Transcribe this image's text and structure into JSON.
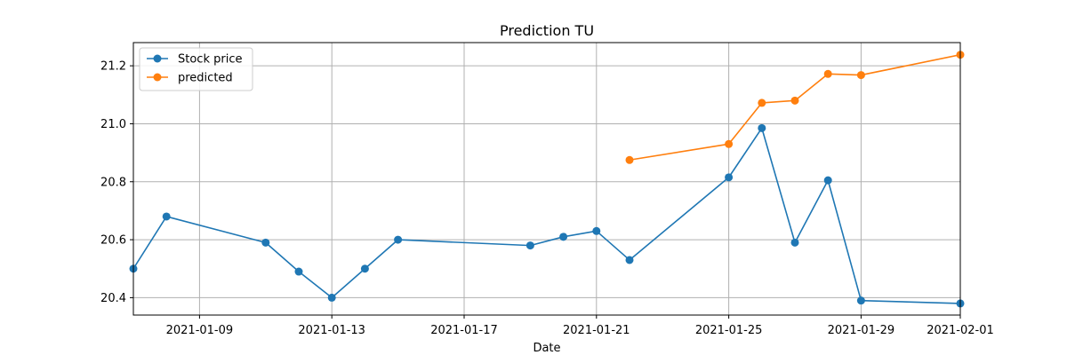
{
  "chart_data": {
    "type": "line",
    "title": "Prediction TU",
    "xlabel": "Date",
    "ylabel": "",
    "x_axis_type": "date",
    "xlim": [
      "2021-01-07",
      "2021-02-01"
    ],
    "ylim": [
      20.34,
      21.28
    ],
    "x_ticks": [
      "2021-01-09",
      "2021-01-13",
      "2021-01-17",
      "2021-01-21",
      "2021-01-25",
      "2021-01-29",
      "2021-02-01"
    ],
    "y_ticks": [
      "20.4",
      "20.6",
      "20.8",
      "21.0",
      "21.2"
    ],
    "grid": true,
    "legend_position": "top-left",
    "series": [
      {
        "name": "Stock price",
        "color": "#1f77b4",
        "marker": "circle",
        "points": [
          {
            "x": "2021-01-07",
            "y": 20.5
          },
          {
            "x": "2021-01-08",
            "y": 20.68
          },
          {
            "x": "2021-01-11",
            "y": 20.59
          },
          {
            "x": "2021-01-12",
            "y": 20.49
          },
          {
            "x": "2021-01-13",
            "y": 20.4
          },
          {
            "x": "2021-01-14",
            "y": 20.5
          },
          {
            "x": "2021-01-15",
            "y": 20.6
          },
          {
            "x": "2021-01-19",
            "y": 20.58
          },
          {
            "x": "2021-01-20",
            "y": 20.61
          },
          {
            "x": "2021-01-21",
            "y": 20.63
          },
          {
            "x": "2021-01-22",
            "y": 20.53
          },
          {
            "x": "2021-01-25",
            "y": 20.815
          },
          {
            "x": "2021-01-26",
            "y": 20.985
          },
          {
            "x": "2021-01-27",
            "y": 20.59
          },
          {
            "x": "2021-01-28",
            "y": 20.805
          },
          {
            "x": "2021-01-29",
            "y": 20.39
          },
          {
            "x": "2021-02-01",
            "y": 20.38
          }
        ]
      },
      {
        "name": "predicted",
        "color": "#ff7f0e",
        "marker": "circle",
        "points": [
          {
            "x": "2021-01-22",
            "y": 20.875
          },
          {
            "x": "2021-01-25",
            "y": 20.93
          },
          {
            "x": "2021-01-26",
            "y": 21.072
          },
          {
            "x": "2021-01-27",
            "y": 21.08
          },
          {
            "x": "2021-01-28",
            "y": 21.172
          },
          {
            "x": "2021-01-29",
            "y": 21.168
          },
          {
            "x": "2021-02-01",
            "y": 21.238
          }
        ]
      }
    ]
  }
}
